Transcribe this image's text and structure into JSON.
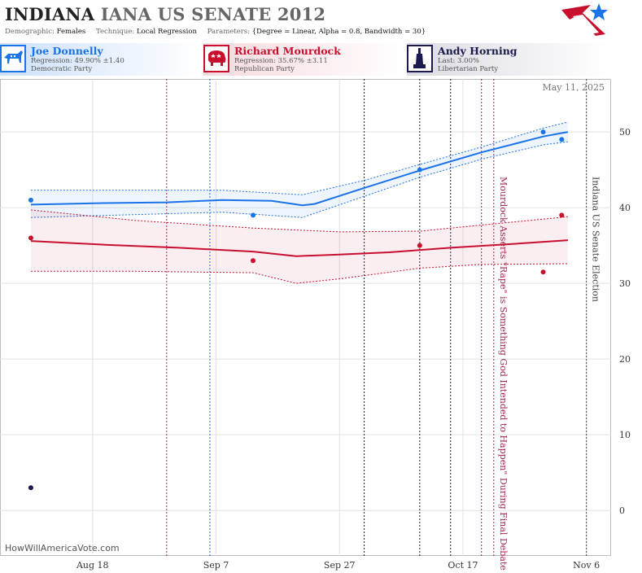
{
  "header": {
    "title_state": "INDIANA",
    "title_rest": "IANA US SENATE 2012",
    "demographic_label": "Demographic:",
    "demographic_value": "Females",
    "technique_label": "Technique:",
    "technique_value": "Local Regression",
    "parameters_label": "Parameters:",
    "parameters_value": "{Degree = Linear, Alpha = 0.8, Bandwidth = 30}"
  },
  "candidates": [
    {
      "name": "Joe Donnelly",
      "stat": "Regression: 49.90% ±1.40",
      "party": "Democratic Party",
      "color": "#1a73e8",
      "icon": "donkey-icon"
    },
    {
      "name": "Richard Mourdock",
      "stat": "Regression: 35.67% ±3.11",
      "party": "Republican Party",
      "color": "#c8102e",
      "icon": "elephant-icon"
    },
    {
      "name": "Andy Horning",
      "stat": "Last: 3.00%",
      "party": "Libertarian Party",
      "color": "#1a1a4e",
      "icon": "liberty-icon"
    }
  ],
  "date_stamp": "May 11, 2025",
  "watermark": "HowWillAmericaVote.com",
  "chart_data": {
    "type": "scatter",
    "x_ticks": [
      "Aug 18",
      "Sep 7",
      "Sep 27",
      "Oct 17",
      "Nov 6"
    ],
    "x_range": [
      "2012-08-03",
      "2012-11-10"
    ],
    "y_ticks": [
      0,
      10,
      20,
      30,
      40,
      50
    ],
    "ylim": [
      -6,
      57
    ],
    "grid": true,
    "series": [
      {
        "name": "Joe Donnelly",
        "color": "#1a73e8",
        "points": [
          [
            "2012-08-08",
            41
          ],
          [
            "2012-09-13",
            39
          ],
          [
            "2012-10-10",
            45
          ],
          [
            "2012-10-30",
            50
          ],
          [
            "2012-11-02",
            49
          ]
        ],
        "trend": [
          [
            "2012-08-08",
            40.4
          ],
          [
            "2012-08-20",
            40.6
          ],
          [
            "2012-08-30",
            40.7
          ],
          [
            "2012-09-08",
            41.0
          ],
          [
            "2012-09-16",
            40.9
          ],
          [
            "2012-09-21",
            40.3
          ],
          [
            "2012-09-23",
            40.5
          ],
          [
            "2012-10-01",
            42.6
          ],
          [
            "2012-10-10",
            44.9
          ],
          [
            "2012-10-20",
            47.3
          ],
          [
            "2012-10-30",
            49.4
          ],
          [
            "2012-11-03",
            50.0
          ]
        ],
        "band_upper": [
          [
            "2012-08-08",
            42.3
          ],
          [
            "2012-09-08",
            42.3
          ],
          [
            "2012-09-21",
            41.7
          ],
          [
            "2012-10-01",
            43.6
          ],
          [
            "2012-10-10",
            45.7
          ],
          [
            "2012-10-20",
            48.0
          ],
          [
            "2012-10-30",
            50.5
          ],
          [
            "2012-11-03",
            51.3
          ]
        ],
        "band_lower": [
          [
            "2012-08-08",
            38.7
          ],
          [
            "2012-09-08",
            39.4
          ],
          [
            "2012-09-21",
            38.7
          ],
          [
            "2012-10-01",
            41.5
          ],
          [
            "2012-10-10",
            44.0
          ],
          [
            "2012-10-20",
            46.4
          ],
          [
            "2012-10-30",
            48.3
          ],
          [
            "2012-11-03",
            48.7
          ]
        ]
      },
      {
        "name": "Richard Mourdock",
        "color": "#c8102e",
        "points": [
          [
            "2012-08-08",
            36
          ],
          [
            "2012-09-13",
            33
          ],
          [
            "2012-10-10",
            35
          ],
          [
            "2012-10-30",
            31.5
          ],
          [
            "2012-11-02",
            39
          ]
        ],
        "trend": [
          [
            "2012-08-08",
            35.6
          ],
          [
            "2012-08-20",
            35.1
          ],
          [
            "2012-09-01",
            34.7
          ],
          [
            "2012-09-13",
            34.2
          ],
          [
            "2012-09-20",
            33.6
          ],
          [
            "2012-09-27",
            33.8
          ],
          [
            "2012-10-05",
            34.1
          ],
          [
            "2012-10-15",
            34.7
          ],
          [
            "2012-10-25",
            35.2
          ],
          [
            "2012-11-03",
            35.7
          ]
        ],
        "band_upper": [
          [
            "2012-08-08",
            39.7
          ],
          [
            "2012-08-25",
            38.3
          ],
          [
            "2012-09-13",
            37.3
          ],
          [
            "2012-09-27",
            36.8
          ],
          [
            "2012-10-10",
            36.9
          ],
          [
            "2012-10-20",
            37.7
          ],
          [
            "2012-11-03",
            38.8
          ]
        ],
        "band_lower": [
          [
            "2012-08-08",
            31.6
          ],
          [
            "2012-08-25",
            31.6
          ],
          [
            "2012-09-13",
            31.4
          ],
          [
            "2012-09-20",
            30.0
          ],
          [
            "2012-09-27",
            30.6
          ],
          [
            "2012-10-10",
            32.0
          ],
          [
            "2012-10-20",
            32.5
          ],
          [
            "2012-11-03",
            32.6
          ]
        ]
      },
      {
        "name": "Andy Horning",
        "color": "#1a1a4e",
        "points": [
          [
            "2012-08-08",
            3
          ]
        ]
      }
    ],
    "event_lines": [
      {
        "date": "2012-08-30",
        "color": "#a0285a",
        "label": ""
      },
      {
        "date": "2012-09-06",
        "color": "#1a73e8",
        "label": ""
      },
      {
        "date": "2012-10-01",
        "color": "#1a1a4e",
        "label": ""
      },
      {
        "date": "2012-10-10",
        "color": "#1a1a4e",
        "label": ""
      },
      {
        "date": "2012-10-15",
        "color": "#1a1a4e",
        "label": ""
      },
      {
        "date": "2012-10-20",
        "color": "#a0285a",
        "label": ""
      },
      {
        "date": "2012-10-22",
        "color": "#a0285a",
        "label": "Mourdock Asserts \"Rape\" is Something God Intended to Happen\" During Final Debate"
      },
      {
        "date": "2012-11-06",
        "color": "#444444",
        "label": "Indiana US Senate Election"
      }
    ]
  }
}
